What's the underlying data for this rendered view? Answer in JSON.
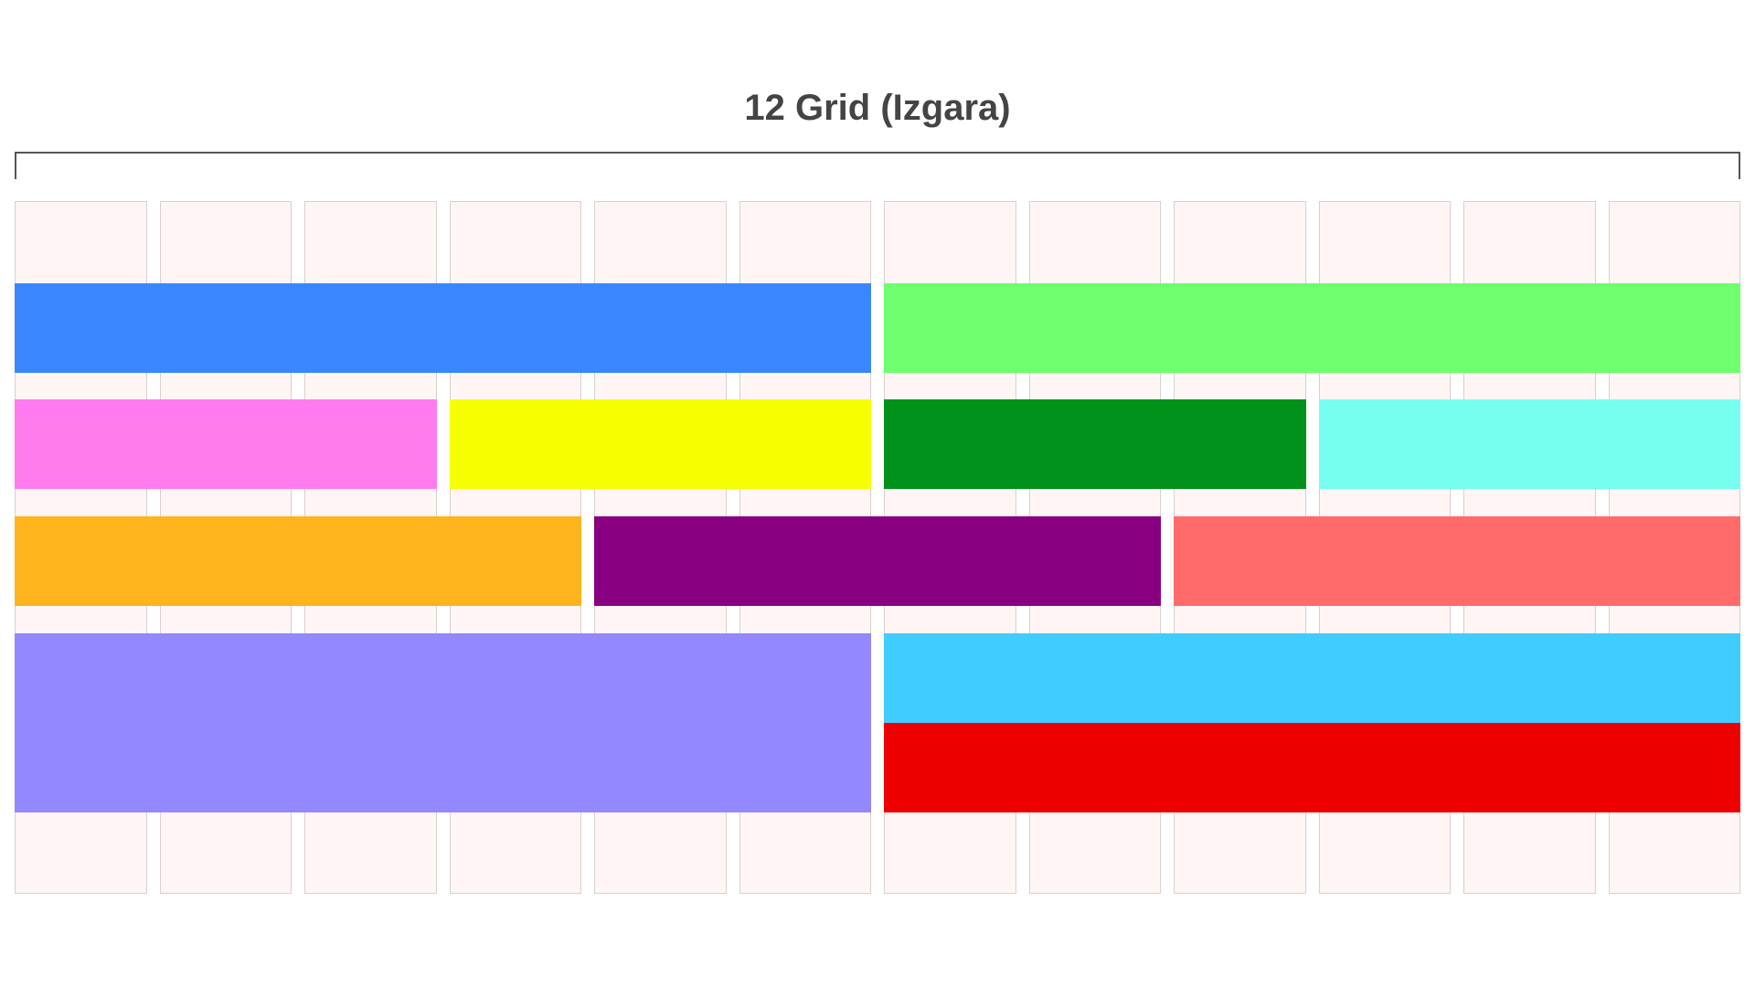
{
  "title": "12 Grid (Izgara)",
  "columns": 12,
  "colors": {
    "row1": [
      "#3a86ff",
      "#6dff6d"
    ],
    "row2": [
      "#ff7bee",
      "#f6ff00",
      "#00921a",
      "#76ffee"
    ],
    "row3": [
      "#ffb31c",
      "#88007f",
      "#ff6b6b"
    ],
    "row4": [
      "#9388ff",
      "#41ccff",
      "#ee0000"
    ]
  }
}
